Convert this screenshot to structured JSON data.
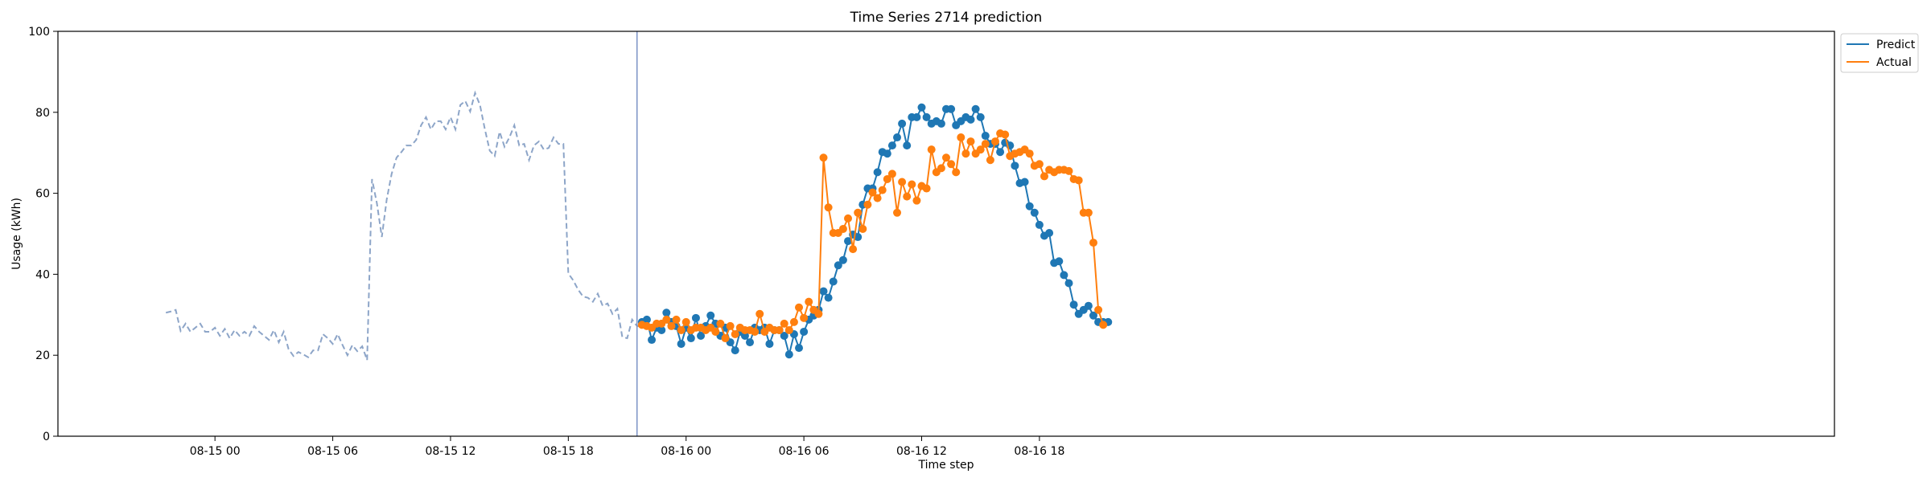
{
  "colors": {
    "history": "#8da5c8",
    "predict": "#1f77b4",
    "actual": "#ff7f0e",
    "divider": "#7b93c6"
  },
  "chart_data": {
    "type": "line",
    "title": "Time Series 2714 prediction",
    "xlabel": "Time step",
    "ylabel": "Usage (kWh)",
    "ylim": [
      0,
      100
    ],
    "yticks": [
      0,
      20,
      40,
      60,
      80,
      100
    ],
    "x_axis_unit": "hours from 08-15 00:00",
    "xlim": [
      -8.0,
      82.5
    ],
    "xticks": [
      {
        "x": 0,
        "label": "08-15 00"
      },
      {
        "x": 6,
        "label": "08-15 06"
      },
      {
        "x": 12,
        "label": "08-15 12"
      },
      {
        "x": 18,
        "label": "08-15 18"
      },
      {
        "x": 24,
        "label": "08-16 00"
      },
      {
        "x": 30,
        "label": "08-16 06"
      },
      {
        "x": 36,
        "label": "08-16 12"
      },
      {
        "x": 42,
        "label": "08-16 18"
      }
    ],
    "grid": false,
    "legend_position": "top-right (outside plot)",
    "divider_x": 21.5,
    "history": {
      "x_start": -2.5,
      "step": 0.25,
      "values": [
        30.5,
        30.8,
        31.2,
        26,
        27.8,
        25.8,
        26.8,
        27.8,
        25.8,
        25.8,
        26.8,
        24.8,
        26.5,
        24.2,
        26.2,
        24.8,
        25.8,
        24.8,
        27.2,
        25.8,
        24.8,
        23.8,
        26.2,
        23.2,
        25.8,
        21.5,
        19.8,
        20.8,
        20.2,
        19.5,
        21.2,
        21.2,
        25.2,
        24.2,
        22.8,
        25.2,
        22.5,
        20,
        22.5,
        21,
        22.2,
        18.8,
        63.5,
        57.5,
        49.2,
        58.5,
        64.8,
        68.8,
        70.2,
        71.8,
        71.8,
        73.2,
        76.8,
        78.8,
        75.8,
        77.8,
        77.8,
        75.8,
        78.8,
        75.8,
        81.8,
        82.8,
        80.2,
        84.8,
        81.8,
        75.8,
        70.5,
        69.2,
        75.2,
        71.5,
        73.8,
        76.8,
        71.8,
        72.2,
        68.2,
        71.8,
        72.8,
        70.8,
        71.2,
        73.8,
        72.2,
        72.2,
        40.2,
        38.5,
        36.2,
        34.5,
        34.2,
        33.2,
        35.2,
        32.2,
        32.8,
        30.2,
        31.5,
        24.5,
        24.2,
        28.8,
        27.2,
        27.2
      ]
    },
    "x_start": 21.75,
    "step": 0.25,
    "series": [
      {
        "name": "Predict",
        "values": [
          28.2,
          28.8,
          23.8,
          26.8,
          26.2,
          30.5,
          28.2,
          27.2,
          22.8,
          26.8,
          24.2,
          29.2,
          24.8,
          27.2,
          29.8,
          27.8,
          24.8,
          26.8,
          23.2,
          21.2,
          25.8,
          24.8,
          23.2,
          26.8,
          26.2,
          26.8,
          22.8,
          26.2,
          26.2,
          24.8,
          20.2,
          25.2,
          21.8,
          25.8,
          28.8,
          29.8,
          31.2,
          35.8,
          34.2,
          38.2,
          42.2,
          43.5,
          48.2,
          49.8,
          49.2,
          57.2,
          61.2,
          61.2,
          65.2,
          70.2,
          69.8,
          71.8,
          73.8,
          77.2,
          71.8,
          78.8,
          78.8,
          81.2,
          78.8,
          77.2,
          77.8,
          77.2,
          80.8,
          80.8,
          76.8,
          77.8,
          78.8,
          78.2,
          80.8,
          78.8,
          74.2,
          72.2,
          72.2,
          70.2,
          72.5,
          71.8,
          66.8,
          62.5,
          62.8,
          56.8,
          55.2,
          52.2,
          49.5,
          50.2,
          42.8,
          43.2,
          39.8,
          37.8,
          32.5,
          30.2,
          31.2,
          32.2,
          29.8,
          28.2,
          28.2,
          28.2
        ]
      },
      {
        "name": "Actual",
        "values": [
          27.5,
          27.2,
          26.8,
          27.8,
          27.8,
          28.8,
          27.2,
          28.8,
          26.2,
          28.2,
          26.2,
          26.8,
          26.8,
          26.2,
          26.8,
          25.8,
          27.8,
          24.2,
          27.2,
          25.2,
          26.8,
          26.2,
          26.2,
          25.8,
          30.2,
          25.8,
          26.8,
          26.2,
          26.2,
          27.8,
          26.2,
          28.2,
          31.8,
          29.2,
          33.2,
          31.2,
          30.2,
          68.8,
          56.5,
          50.2,
          50.2,
          51.2,
          53.8,
          46.2,
          55.2,
          51.2,
          57.2,
          60.2,
          58.8,
          60.8,
          63.5,
          64.8,
          55.2,
          62.8,
          59.2,
          62.2,
          58.2,
          61.8,
          61.2,
          70.8,
          65.2,
          66.2,
          68.8,
          67.2,
          65.2,
          73.8,
          69.8,
          72.8,
          69.8,
          70.8,
          72.2,
          68.2,
          72.8,
          74.8,
          74.5,
          69.2,
          69.8,
          70.2,
          70.8,
          69.8,
          66.8,
          67.2,
          64.2,
          65.8,
          65.2,
          65.8,
          65.8,
          65.5,
          63.5,
          63.2,
          55.2,
          55.2,
          47.8,
          31.2,
          27.5
        ]
      }
    ]
  }
}
